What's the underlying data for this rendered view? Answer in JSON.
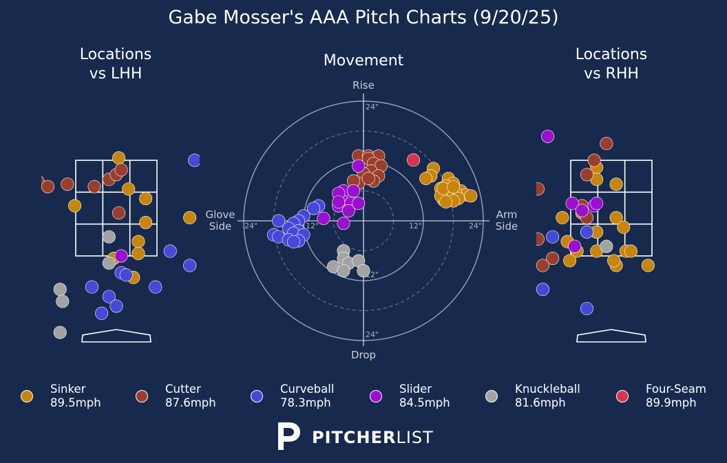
{
  "title": "Gabe Mosser's AAA Pitch Charts (9/20/25)",
  "panels": {
    "lhh_title": "Locations\nvs LHH",
    "movement_title": "Movement",
    "rhh_title": "Locations\nvs RHH"
  },
  "brand": {
    "bold": "PITCHER",
    "light": "LIST"
  },
  "colors": {
    "background": "#172a4d",
    "Sinker": "#c8850b",
    "Cutter": "#9a3e2c",
    "Curveball": "#4449d9",
    "Slider": "#9b0fcf",
    "Knuckleball": "#a3a3a3",
    "Four-Seam": "#d9344f"
  },
  "chart_data": [
    {
      "type": "scatter",
      "name": "Locations vs LHH",
      "xlim": [
        -2.5,
        2.5
      ],
      "ylim": [
        -0.3,
        5.0
      ],
      "strike_zone": {
        "x": [
          -0.83,
          0.83
        ],
        "y": [
          1.5,
          3.5
        ]
      },
      "points": [
        {
          "pitch": "Sinker",
          "x": 0.05,
          "y": 3.55
        },
        {
          "pitch": "Sinker",
          "x": 0.25,
          "y": 2.9
        },
        {
          "pitch": "Sinker",
          "x": 0.6,
          "y": 2.7
        },
        {
          "pitch": "Sinker",
          "x": -0.85,
          "y": 2.55
        },
        {
          "pitch": "Sinker",
          "x": 0.6,
          "y": 2.2
        },
        {
          "pitch": "Sinker",
          "x": 0.45,
          "y": 1.8
        },
        {
          "pitch": "Sinker",
          "x": 0.45,
          "y": 1.55
        },
        {
          "pitch": "Sinker",
          "x": -0.05,
          "y": 1.45
        },
        {
          "pitch": "Sinker",
          "x": 0.35,
          "y": 1.05
        },
        {
          "pitch": "Sinker",
          "x": 1.5,
          "y": 2.3
        },
        {
          "pitch": "Cutter",
          "x": -2.15,
          "y": 3.3
        },
        {
          "pitch": "Cutter",
          "x": -1.6,
          "y": 3.05
        },
        {
          "pitch": "Cutter",
          "x": -1.4,
          "y": 2.95
        },
        {
          "pitch": "Cutter",
          "x": -1.75,
          "y": 2.85
        },
        {
          "pitch": "Cutter",
          "x": -1.0,
          "y": 3.0
        },
        {
          "pitch": "Cutter",
          "x": -0.45,
          "y": 2.95
        },
        {
          "pitch": "Cutter",
          "x": -0.15,
          "y": 3.1
        },
        {
          "pitch": "Cutter",
          "x": 0.0,
          "y": 3.2
        },
        {
          "pitch": "Cutter",
          "x": 0.1,
          "y": 3.3
        },
        {
          "pitch": "Cutter",
          "x": 0.05,
          "y": 2.4
        },
        {
          "pitch": "Curveball",
          "x": 1.6,
          "y": 3.5
        },
        {
          "pitch": "Curveball",
          "x": 1.1,
          "y": 1.6
        },
        {
          "pitch": "Curveball",
          "x": 0.1,
          "y": 1.15
        },
        {
          "pitch": "Curveball",
          "x": 0.2,
          "y": 1.1
        },
        {
          "pitch": "Curveball",
          "x": -0.5,
          "y": 0.85
        },
        {
          "pitch": "Curveball",
          "x": -0.15,
          "y": 0.65
        },
        {
          "pitch": "Curveball",
          "x": -0.3,
          "y": 0.3
        },
        {
          "pitch": "Curveball",
          "x": 0.8,
          "y": 0.85
        },
        {
          "pitch": "Curveball",
          "x": 0.0,
          "y": 0.45
        },
        {
          "pitch": "Curveball",
          "x": 1.5,
          "y": 1.3
        },
        {
          "pitch": "Slider",
          "x": 0.1,
          "y": 1.5
        },
        {
          "pitch": "Knuckleball",
          "x": -0.15,
          "y": 1.9
        },
        {
          "pitch": "Knuckleball",
          "x": -0.15,
          "y": 1.35
        },
        {
          "pitch": "Knuckleball",
          "x": -1.15,
          "y": 0.8
        },
        {
          "pitch": "Knuckleball",
          "x": -1.1,
          "y": 0.55
        },
        {
          "pitch": "Knuckleball",
          "x": -1.15,
          "y": -0.1
        }
      ]
    },
    {
      "type": "scatter",
      "name": "Movement",
      "xlabel_left": "Glove\nSide",
      "xlabel_right": "Arm\nSide",
      "ylabel_top": "Rise",
      "ylabel_bottom": "Drop",
      "rings": [
        12,
        18,
        24
      ],
      "ring_labels": [
        "12\"",
        "12\"",
        "12\"",
        "24\"",
        "24\"",
        "24\"",
        "24\""
      ],
      "xlim": [
        -25,
        25
      ],
      "ylim": [
        -25,
        25
      ],
      "points": [
        {
          "pitch": "Sinker",
          "x": 14,
          "y": 10.5
        },
        {
          "pitch": "Sinker",
          "x": 13.5,
          "y": 9
        },
        {
          "pitch": "Sinker",
          "x": 12.5,
          "y": 8.5
        },
        {
          "pitch": "Sinker",
          "x": 17,
          "y": 8.5
        },
        {
          "pitch": "Sinker",
          "x": 18,
          "y": 7.5
        },
        {
          "pitch": "Sinker",
          "x": 16.5,
          "y": 7
        },
        {
          "pitch": "Sinker",
          "x": 15.5,
          "y": 6.5
        },
        {
          "pitch": "Sinker",
          "x": 16,
          "y": 5.5
        },
        {
          "pitch": "Sinker",
          "x": 19.5,
          "y": 6
        },
        {
          "pitch": "Sinker",
          "x": 20.5,
          "y": 5.2
        },
        {
          "pitch": "Sinker",
          "x": 21.5,
          "y": 5.0
        },
        {
          "pitch": "Sinker",
          "x": 18.5,
          "y": 5.5
        },
        {
          "pitch": "Sinker",
          "x": 17,
          "y": 4.5
        },
        {
          "pitch": "Sinker",
          "x": 16,
          "y": 4.2
        },
        {
          "pitch": "Sinker",
          "x": 15.5,
          "y": 5
        },
        {
          "pitch": "Sinker",
          "x": 19,
          "y": 4.5
        },
        {
          "pitch": "Sinker",
          "x": 18,
          "y": 4
        },
        {
          "pitch": "Sinker",
          "x": 16.5,
          "y": 3.8
        },
        {
          "pitch": "Sinker",
          "x": 16,
          "y": 6.5
        },
        {
          "pitch": "Sinker",
          "x": 18,
          "y": 6.8
        },
        {
          "pitch": "Cutter",
          "x": -1,
          "y": 13
        },
        {
          "pitch": "Cutter",
          "x": 1,
          "y": 13
        },
        {
          "pitch": "Cutter",
          "x": 3,
          "y": 13
        },
        {
          "pitch": "Cutter",
          "x": 1,
          "y": 12.5
        },
        {
          "pitch": "Cutter",
          "x": 2,
          "y": 11.5
        },
        {
          "pitch": "Cutter",
          "x": 3.5,
          "y": 11
        },
        {
          "pitch": "Cutter",
          "x": 1.5,
          "y": 10
        },
        {
          "pitch": "Cutter",
          "x": 0,
          "y": 9.5
        },
        {
          "pitch": "Cutter",
          "x": 3,
          "y": 9
        },
        {
          "pitch": "Cutter",
          "x": 2,
          "y": 8
        },
        {
          "pitch": "Cutter",
          "x": -1,
          "y": 7.5
        },
        {
          "pitch": "Cutter",
          "x": 1,
          "y": 8.5
        },
        {
          "pitch": "Cutter",
          "x": -2,
          "y": 8
        },
        {
          "pitch": "Four-Seam",
          "x": 10,
          "y": 12.2
        },
        {
          "pitch": "Slider",
          "x": -1,
          "y": 11
        },
        {
          "pitch": "Slider",
          "x": -4,
          "y": 6
        },
        {
          "pitch": "Slider",
          "x": -4.3,
          "y": 4
        },
        {
          "pitch": "Slider",
          "x": -5,
          "y": 5.5
        },
        {
          "pitch": "Slider",
          "x": -2,
          "y": 6
        },
        {
          "pitch": "Slider",
          "x": -2.5,
          "y": 3.5
        },
        {
          "pitch": "Slider",
          "x": -5,
          "y": 3
        },
        {
          "pitch": "Slider",
          "x": -5,
          "y": 3.8
        },
        {
          "pitch": "Slider",
          "x": -3,
          "y": 2
        },
        {
          "pitch": "Slider",
          "x": -1,
          "y": 3.5
        },
        {
          "pitch": "Slider",
          "x": -4,
          "y": -0.5
        },
        {
          "pitch": "Slider",
          "x": -8,
          "y": 0.5
        },
        {
          "pitch": "Curveball",
          "x": -9,
          "y": 3
        },
        {
          "pitch": "Curveball",
          "x": -10,
          "y": 2.5
        },
        {
          "pitch": "Curveball",
          "x": -12,
          "y": 1
        },
        {
          "pitch": "Curveball",
          "x": -13,
          "y": 0
        },
        {
          "pitch": "Curveball",
          "x": -14,
          "y": -0.5
        },
        {
          "pitch": "Curveball",
          "x": -17,
          "y": 0
        },
        {
          "pitch": "Curveball",
          "x": -15,
          "y": -1.5
        },
        {
          "pitch": "Curveball",
          "x": -13,
          "y": -2
        },
        {
          "pitch": "Curveball",
          "x": -14,
          "y": -2.5
        },
        {
          "pitch": "Curveball",
          "x": -12,
          "y": -2.8
        },
        {
          "pitch": "Curveball",
          "x": -18,
          "y": -2.8
        },
        {
          "pitch": "Curveball",
          "x": -17,
          "y": -3.2
        },
        {
          "pitch": "Curveball",
          "x": -15,
          "y": -3.8
        },
        {
          "pitch": "Curveball",
          "x": -13,
          "y": -4
        },
        {
          "pitch": "Curveball",
          "x": -14,
          "y": -4.2
        },
        {
          "pitch": "Knuckleball",
          "x": -4,
          "y": -6
        },
        {
          "pitch": "Knuckleball",
          "x": -4,
          "y": -7.5
        },
        {
          "pitch": "Knuckleball",
          "x": -3,
          "y": -8.5
        },
        {
          "pitch": "Knuckleball",
          "x": -1,
          "y": -8
        },
        {
          "pitch": "Knuckleball",
          "x": -6,
          "y": -9.2
        },
        {
          "pitch": "Knuckleball",
          "x": -4,
          "y": -10
        },
        {
          "pitch": "Knuckleball",
          "x": 0,
          "y": -10
        }
      ]
    },
    {
      "type": "scatter",
      "name": "Locations vs RHH",
      "xlim": [
        -2.5,
        2.5
      ],
      "ylim": [
        -0.3,
        5.0
      ],
      "strike_zone": {
        "x": [
          -0.83,
          0.83
        ],
        "y": [
          1.5,
          3.5
        ]
      },
      "points": [
        {
          "pitch": "Sinker",
          "x": -0.3,
          "y": 3.35
        },
        {
          "pitch": "Sinker",
          "x": -0.3,
          "y": 3.1
        },
        {
          "pitch": "Sinker",
          "x": 0.1,
          "y": 3.0
        },
        {
          "pitch": "Sinker",
          "x": 2.0,
          "y": 2.6
        },
        {
          "pitch": "Sinker",
          "x": -1.0,
          "y": 2.3
        },
        {
          "pitch": "Sinker",
          "x": -0.6,
          "y": 2.4
        },
        {
          "pitch": "Sinker",
          "x": -0.9,
          "y": 1.8
        },
        {
          "pitch": "Sinker",
          "x": -0.7,
          "y": 1.6
        },
        {
          "pitch": "Sinker",
          "x": -0.3,
          "y": 1.6
        },
        {
          "pitch": "Sinker",
          "x": -0.3,
          "y": 2.0
        },
        {
          "pitch": "Sinker",
          "x": 0.1,
          "y": 1.3
        },
        {
          "pitch": "Sinker",
          "x": 0.3,
          "y": 1.6
        },
        {
          "pitch": "Sinker",
          "x": 0.4,
          "y": 1.6
        },
        {
          "pitch": "Sinker",
          "x": -0.85,
          "y": 1.4
        },
        {
          "pitch": "Sinker",
          "x": 0.05,
          "y": 1.4
        },
        {
          "pitch": "Sinker",
          "x": 0.75,
          "y": 1.3
        },
        {
          "pitch": "Sinker",
          "x": 0.1,
          "y": 2.3
        },
        {
          "pitch": "Sinker",
          "x": 0.25,
          "y": 2.1
        },
        {
          "pitch": "Cutter",
          "x": -0.1,
          "y": 3.85
        },
        {
          "pitch": "Cutter",
          "x": -0.35,
          "y": 3.5
        },
        {
          "pitch": "Cutter",
          "x": -0.5,
          "y": 3.2
        },
        {
          "pitch": "Cutter",
          "x": -1.5,
          "y": 2.9
        },
        {
          "pitch": "Cutter",
          "x": -0.6,
          "y": 2.55
        },
        {
          "pitch": "Cutter",
          "x": -0.5,
          "y": 2.3
        },
        {
          "pitch": "Cutter",
          "x": -1.2,
          "y": 1.45
        },
        {
          "pitch": "Cutter",
          "x": -1.4,
          "y": 1.3
        },
        {
          "pitch": "Cutter",
          "x": -1.5,
          "y": 1.85
        },
        {
          "pitch": "Curveball",
          "x": -1.2,
          "y": 1.9
        },
        {
          "pitch": "Curveball",
          "x": -0.5,
          "y": 2.0
        },
        {
          "pitch": "Curveball",
          "x": -1.4,
          "y": 0.8
        },
        {
          "pitch": "Curveball",
          "x": -0.5,
          "y": 0.4
        },
        {
          "pitch": "Slider",
          "x": -1.3,
          "y": 4.0
        },
        {
          "pitch": "Slider",
          "x": -0.8,
          "y": 2.6
        },
        {
          "pitch": "Slider",
          "x": -0.6,
          "y": 2.45
        },
        {
          "pitch": "Slider",
          "x": -0.35,
          "y": 2.55
        },
        {
          "pitch": "Slider",
          "x": -0.3,
          "y": 2.6
        },
        {
          "pitch": "Slider",
          "x": -0.75,
          "y": 1.7
        },
        {
          "pitch": "Knuckleball",
          "x": -0.1,
          "y": 1.7
        }
      ]
    }
  ],
  "legend": [
    {
      "pitch": "Sinker",
      "speed": "89.5mph"
    },
    {
      "pitch": "Cutter",
      "speed": "87.6mph"
    },
    {
      "pitch": "Curveball",
      "speed": "78.3mph"
    },
    {
      "pitch": "Slider",
      "speed": "84.5mph"
    },
    {
      "pitch": "Knuckleball",
      "speed": "81.6mph"
    },
    {
      "pitch": "Four-Seam",
      "speed": "89.9mph"
    }
  ]
}
